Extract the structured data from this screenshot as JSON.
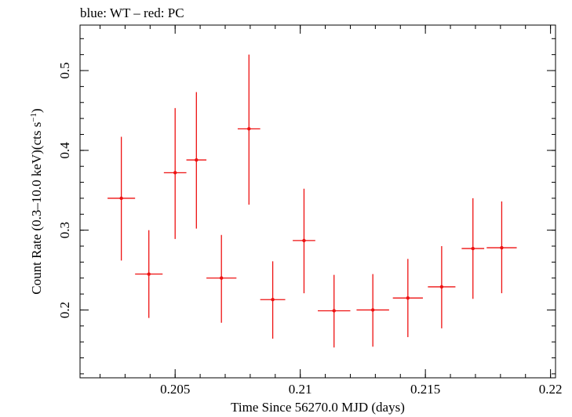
{
  "chart_data": {
    "type": "scatter",
    "title": "blue: WT – red: PC",
    "xlabel": "Time Since 56270.0 MJD (days)",
    "ylabel_main": "Count Rate (0.3–10.0 keV)(cts s",
    "ylabel_sup": "−1",
    "ylabel_end": ")",
    "xlim": [
      0.2012,
      0.2202
    ],
    "ylim": [
      0.115,
      0.557
    ],
    "x_ticks": [
      {
        "value": 0.205,
        "label": "0.205"
      },
      {
        "value": 0.21,
        "label": "0.21"
      },
      {
        "value": 0.215,
        "label": "0.215"
      },
      {
        "value": 0.22,
        "label": "0.22"
      }
    ],
    "y_ticks": [
      {
        "value": 0.2,
        "label": "0.2"
      },
      {
        "value": 0.3,
        "label": "0.3"
      },
      {
        "value": 0.4,
        "label": "0.4"
      },
      {
        "value": 0.5,
        "label": "0.5"
      }
    ],
    "x_minor_step": 0.001,
    "y_minor_step": 0.02,
    "grid": false,
    "series": [
      {
        "color": "#ee1111",
        "points": [
          {
            "x": 0.20285,
            "xerr": 0.00055,
            "y": 0.34,
            "yerr_lo": 0.078,
            "yerr_hi": 0.077
          },
          {
            "x": 0.20395,
            "xerr": 0.00055,
            "y": 0.245,
            "yerr_lo": 0.055,
            "yerr_hi": 0.055
          },
          {
            "x": 0.205,
            "xerr": 0.00045,
            "y": 0.372,
            "yerr_lo": 0.083,
            "yerr_hi": 0.081
          },
          {
            "x": 0.20585,
            "xerr": 0.0004,
            "y": 0.388,
            "yerr_lo": 0.086,
            "yerr_hi": 0.085
          },
          {
            "x": 0.20685,
            "xerr": 0.0006,
            "y": 0.24,
            "yerr_lo": 0.056,
            "yerr_hi": 0.054
          },
          {
            "x": 0.20795,
            "xerr": 0.00045,
            "y": 0.427,
            "yerr_lo": 0.095,
            "yerr_hi": 0.093
          },
          {
            "x": 0.2089,
            "xerr": 0.0005,
            "y": 0.213,
            "yerr_lo": 0.049,
            "yerr_hi": 0.048
          },
          {
            "x": 0.21015,
            "xerr": 0.00045,
            "y": 0.287,
            "yerr_lo": 0.066,
            "yerr_hi": 0.065
          },
          {
            "x": 0.21135,
            "xerr": 0.00065,
            "y": 0.199,
            "yerr_lo": 0.046,
            "yerr_hi": 0.045
          },
          {
            "x": 0.2129,
            "xerr": 0.00065,
            "y": 0.2,
            "yerr_lo": 0.046,
            "yerr_hi": 0.045
          },
          {
            "x": 0.2143,
            "xerr": 0.0006,
            "y": 0.215,
            "yerr_lo": 0.049,
            "yerr_hi": 0.049
          },
          {
            "x": 0.21565,
            "xerr": 0.00055,
            "y": 0.229,
            "yerr_lo": 0.052,
            "yerr_hi": 0.051
          },
          {
            "x": 0.2169,
            "xerr": 0.00045,
            "y": 0.277,
            "yerr_lo": 0.063,
            "yerr_hi": 0.063
          },
          {
            "x": 0.21805,
            "xerr": 0.0006,
            "y": 0.278,
            "yerr_lo": 0.057,
            "yerr_hi": 0.058
          }
        ]
      }
    ]
  }
}
